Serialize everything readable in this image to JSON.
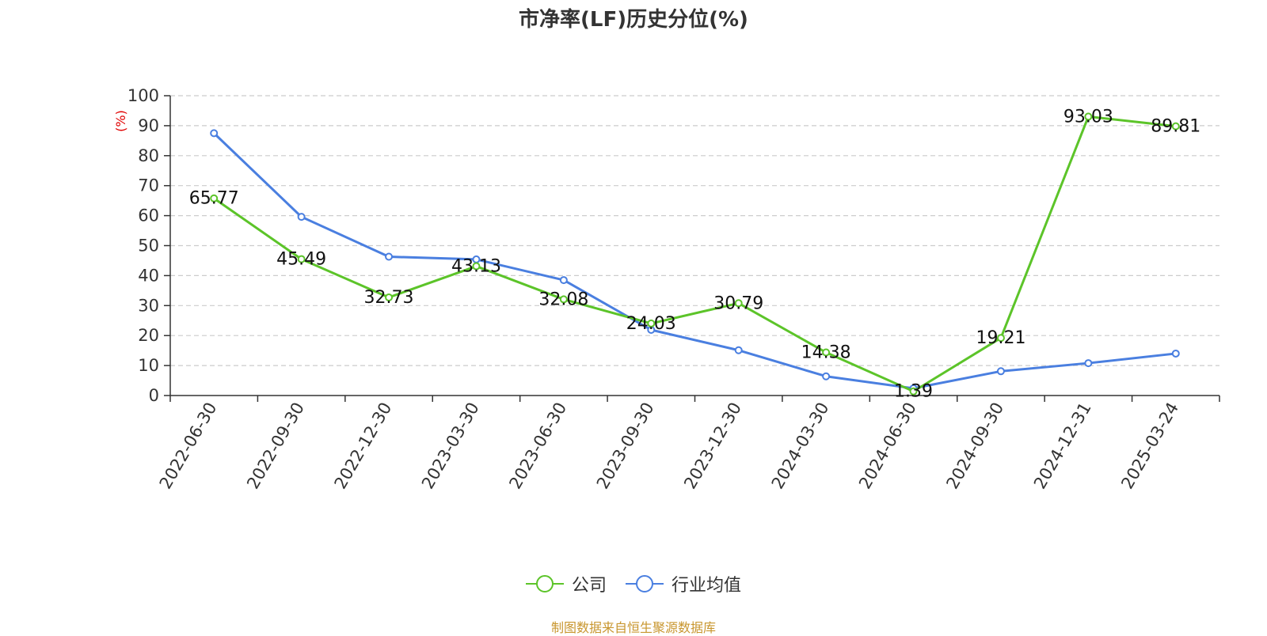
{
  "title": "市净率(LF)历史分位(%)",
  "source": "制图数据来自恒生聚源数据库",
  "chart_data": {
    "type": "line",
    "title": "市净率(LF)历史分位(%)",
    "xlabel": "",
    "ylabel": "(%)",
    "ylim": [
      0,
      100
    ],
    "yticks": [
      0,
      10,
      20,
      30,
      40,
      50,
      60,
      70,
      80,
      90,
      100
    ],
    "grid": true,
    "legend_position": "bottom",
    "categories": [
      "2022-06-30",
      "2022-09-30",
      "2022-12-30",
      "2023-03-30",
      "2023-06-30",
      "2023-09-30",
      "2023-12-30",
      "2024-03-30",
      "2024-06-30",
      "2024-09-30",
      "2024-12-31",
      "2025-03-24"
    ],
    "series": [
      {
        "name": "公司",
        "color": "#5cc429",
        "values": [
          65.77,
          45.49,
          32.73,
          43.13,
          32.08,
          24.03,
          30.79,
          14.38,
          1.39,
          19.21,
          93.03,
          89.81
        ],
        "labels": [
          "65.77",
          "45.49",
          "32.73",
          "43.13",
          "32.08",
          "24.03",
          "30.79",
          "14.38",
          "1.39",
          "19.21",
          "93.03",
          "89.81"
        ]
      },
      {
        "name": "行业均值",
        "color": "#4a7fe0",
        "values": [
          87.5,
          59.6,
          46.3,
          45.4,
          38.5,
          21.9,
          15.1,
          6.4,
          2.4,
          8.1,
          10.8,
          14.0
        ]
      }
    ]
  }
}
